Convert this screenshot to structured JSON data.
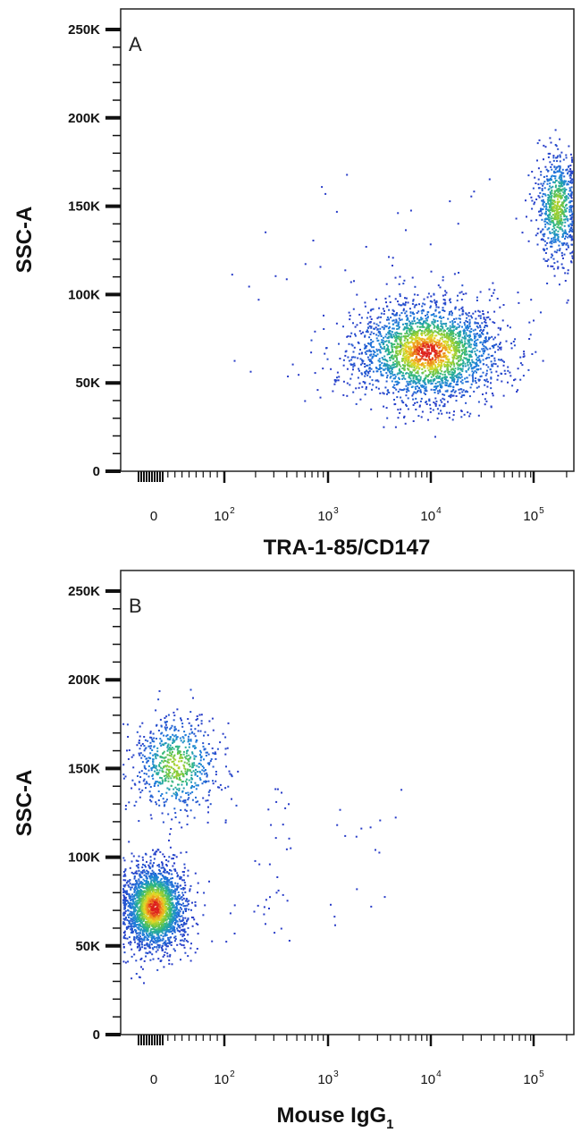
{
  "chart_data": [
    {
      "type": "scatter",
      "subtype": "flow-cytometry density dot plot",
      "panel_label": "A",
      "xlabel": "TRA-1-85/CD147",
      "ylabel": "SSC-A",
      "x_scale": "biexponential (log with linear region near 0)",
      "x_ticks": [
        {
          "base": "0",
          "exp": ""
        },
        {
          "base": "10",
          "exp": "2"
        },
        {
          "base": "10",
          "exp": "3"
        },
        {
          "base": "10",
          "exp": "4"
        },
        {
          "base": "10",
          "exp": "5"
        }
      ],
      "y_ticks": [
        "0",
        "50K",
        "100K",
        "150K",
        "200K",
        "250K"
      ],
      "ylim": [
        0,
        262144
      ],
      "grid": false,
      "color_scale": "density (blue low, green, yellow, red high)",
      "populations": [
        {
          "center_x": 9000,
          "center_y": 68000,
          "spread_decades": 0.35,
          "spread_y": 14000,
          "count": 2600
        },
        {
          "center_x": 160000,
          "center_y": 150000,
          "spread_decades": 0.1,
          "spread_y": 15000,
          "count": 700
        }
      ]
    },
    {
      "type": "scatter",
      "subtype": "flow-cytometry density dot plot",
      "panel_label": "B",
      "xlabel": "Mouse IgG",
      "xlabel_subscript": "1",
      "ylabel": "SSC-A",
      "x_scale": "biexponential (log with linear region near 0)",
      "x_ticks": [
        {
          "base": "0",
          "exp": ""
        },
        {
          "base": "10",
          "exp": "2"
        },
        {
          "base": "10",
          "exp": "3"
        },
        {
          "base": "10",
          "exp": "4"
        },
        {
          "base": "10",
          "exp": "5"
        }
      ],
      "y_ticks": [
        "0",
        "50K",
        "100K",
        "150K",
        "200K",
        "250K"
      ],
      "ylim": [
        0,
        262144
      ],
      "grid": false,
      "color_scale": "density (blue low, green, yellow, red high)",
      "populations": [
        {
          "center_x": 0,
          "center_y": 72000,
          "spread_linear": 22,
          "spread_y": 12000,
          "count": 2400
        },
        {
          "center_x": 30,
          "center_y": 152000,
          "spread_linear": 30,
          "spread_y": 14000,
          "count": 700
        }
      ]
    }
  ]
}
